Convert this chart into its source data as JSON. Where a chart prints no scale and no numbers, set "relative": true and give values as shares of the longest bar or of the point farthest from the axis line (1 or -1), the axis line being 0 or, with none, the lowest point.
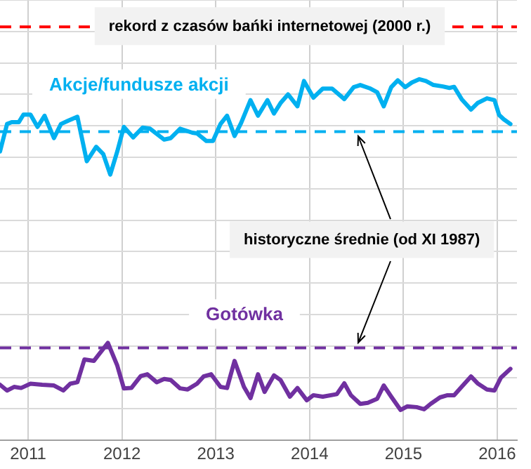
{
  "chart_data": {
    "type": "line",
    "relative": true,
    "xlim": [
      2010.7,
      2016.21
    ],
    "xticks": [
      2011,
      2012,
      2013,
      2014,
      2015,
      2016
    ],
    "grid": true,
    "legend": false,
    "marker": "none",
    "line_style": "solid",
    "annotations": [
      "historyczne średnie (od XI 1987)"
    ],
    "ref_lines": [
      {
        "axis": "y",
        "value": 1.145,
        "label": "rekord z czasów bańki internetowej (2000 r.)",
        "color": "#ff0000",
        "line_style": "dashed"
      },
      {
        "axis": "y",
        "value": 0.855,
        "label": null,
        "color": "#00b0f0",
        "line_style": "dashed"
      },
      {
        "axis": "y",
        "value": 0.256,
        "label": null,
        "color": "#7030a0",
        "line_style": "dashed"
      }
    ],
    "series": [
      {
        "name": "Akcje/fundusze akcji",
        "color": "#00b0f0",
        "x": [
          2010.7,
          2010.775,
          2010.825,
          2010.9,
          2010.95,
          2011.025,
          2011.1,
          2011.175,
          2011.275,
          2011.35,
          2011.425,
          2011.525,
          2011.625,
          2011.725,
          2011.8,
          2011.875,
          2011.95,
          2012.02,
          2012.12,
          2012.22,
          2012.3,
          2012.45,
          2012.52,
          2012.62,
          2012.75,
          2012.8,
          2012.9,
          2012.97,
          2013.05,
          2013.12,
          2013.2,
          2013.27,
          2013.37,
          2013.45,
          2013.55,
          2013.62,
          2013.69,
          2013.77,
          2013.87,
          2013.94,
          2014.04,
          2014.14,
          2014.24,
          2014.37,
          2014.47,
          2014.54,
          2014.64,
          2014.72,
          2014.79,
          2014.87,
          2014.94,
          2015.02,
          2015.09,
          2015.17,
          2015.24,
          2015.32,
          2015.42,
          2015.49,
          2015.54,
          2015.62,
          2015.72,
          2015.79,
          2015.89,
          2015.97,
          2016.02,
          2016.07,
          2016.14
        ],
        "values": [
          0.8,
          0.876,
          0.881,
          0.881,
          0.902,
          0.902,
          0.868,
          0.899,
          0.837,
          0.876,
          0.885,
          0.896,
          0.773,
          0.813,
          0.793,
          0.736,
          0.8,
          0.868,
          0.839,
          0.866,
          0.863,
          0.833,
          0.837,
          0.863,
          0.852,
          0.85,
          0.829,
          0.829,
          0.876,
          0.899,
          0.843,
          0.879,
          0.942,
          0.899,
          0.942,
          0.905,
          0.934,
          0.958,
          0.925,
          0.995,
          0.949,
          0.974,
          0.974,
          0.945,
          0.978,
          0.984,
          0.975,
          0.964,
          0.925,
          0.978,
          0.997,
          0.978,
          0.991,
          1.0,
          0.995,
          0.984,
          0.98,
          0.976,
          0.979,
          0.945,
          0.916,
          0.934,
          0.947,
          0.942,
          0.901,
          0.889,
          0.876
        ]
      },
      {
        "name": "Gotówka",
        "color": "#7030a0",
        "x": [
          2010.7,
          2010.775,
          2010.85,
          2010.925,
          2011.025,
          2011.15,
          2011.275,
          2011.375,
          2011.45,
          2011.525,
          2011.6,
          2011.7,
          2011.85,
          2011.95,
          2012.02,
          2012.1,
          2012.2,
          2012.27,
          2012.37,
          2012.45,
          2012.52,
          2012.62,
          2012.7,
          2012.8,
          2012.87,
          2012.95,
          2013.05,
          2013.12,
          2013.2,
          2013.3,
          2013.37,
          2013.45,
          2013.52,
          2013.62,
          2013.69,
          2013.79,
          2013.87,
          2013.97,
          2014.04,
          2014.14,
          2014.29,
          2014.37,
          2014.44,
          2014.54,
          2014.62,
          2014.72,
          2014.79,
          2014.87,
          2014.97,
          2015.04,
          2015.14,
          2015.22,
          2015.29,
          2015.39,
          2015.47,
          2015.54,
          2015.62,
          2015.72,
          2015.79,
          2015.89,
          2015.97,
          2016.04,
          2016.14
        ],
        "values": [
          0.154,
          0.138,
          0.148,
          0.145,
          0.157,
          0.154,
          0.152,
          0.138,
          0.157,
          0.161,
          0.224,
          0.22,
          0.27,
          0.207,
          0.144,
          0.145,
          0.178,
          0.183,
          0.161,
          0.17,
          0.167,
          0.144,
          0.141,
          0.157,
          0.177,
          0.183,
          0.148,
          0.145,
          0.22,
          0.148,
          0.117,
          0.183,
          0.134,
          0.18,
          0.167,
          0.121,
          0.145,
          0.111,
          0.125,
          0.121,
          0.128,
          0.158,
          0.125,
          0.101,
          0.104,
          0.115,
          0.152,
          0.121,
          0.084,
          0.094,
          0.092,
          0.086,
          0.101,
          0.119,
          0.125,
          0.125,
          0.148,
          0.177,
          0.158,
          0.141,
          0.138,
          0.174,
          0.198
        ]
      }
    ]
  }
}
